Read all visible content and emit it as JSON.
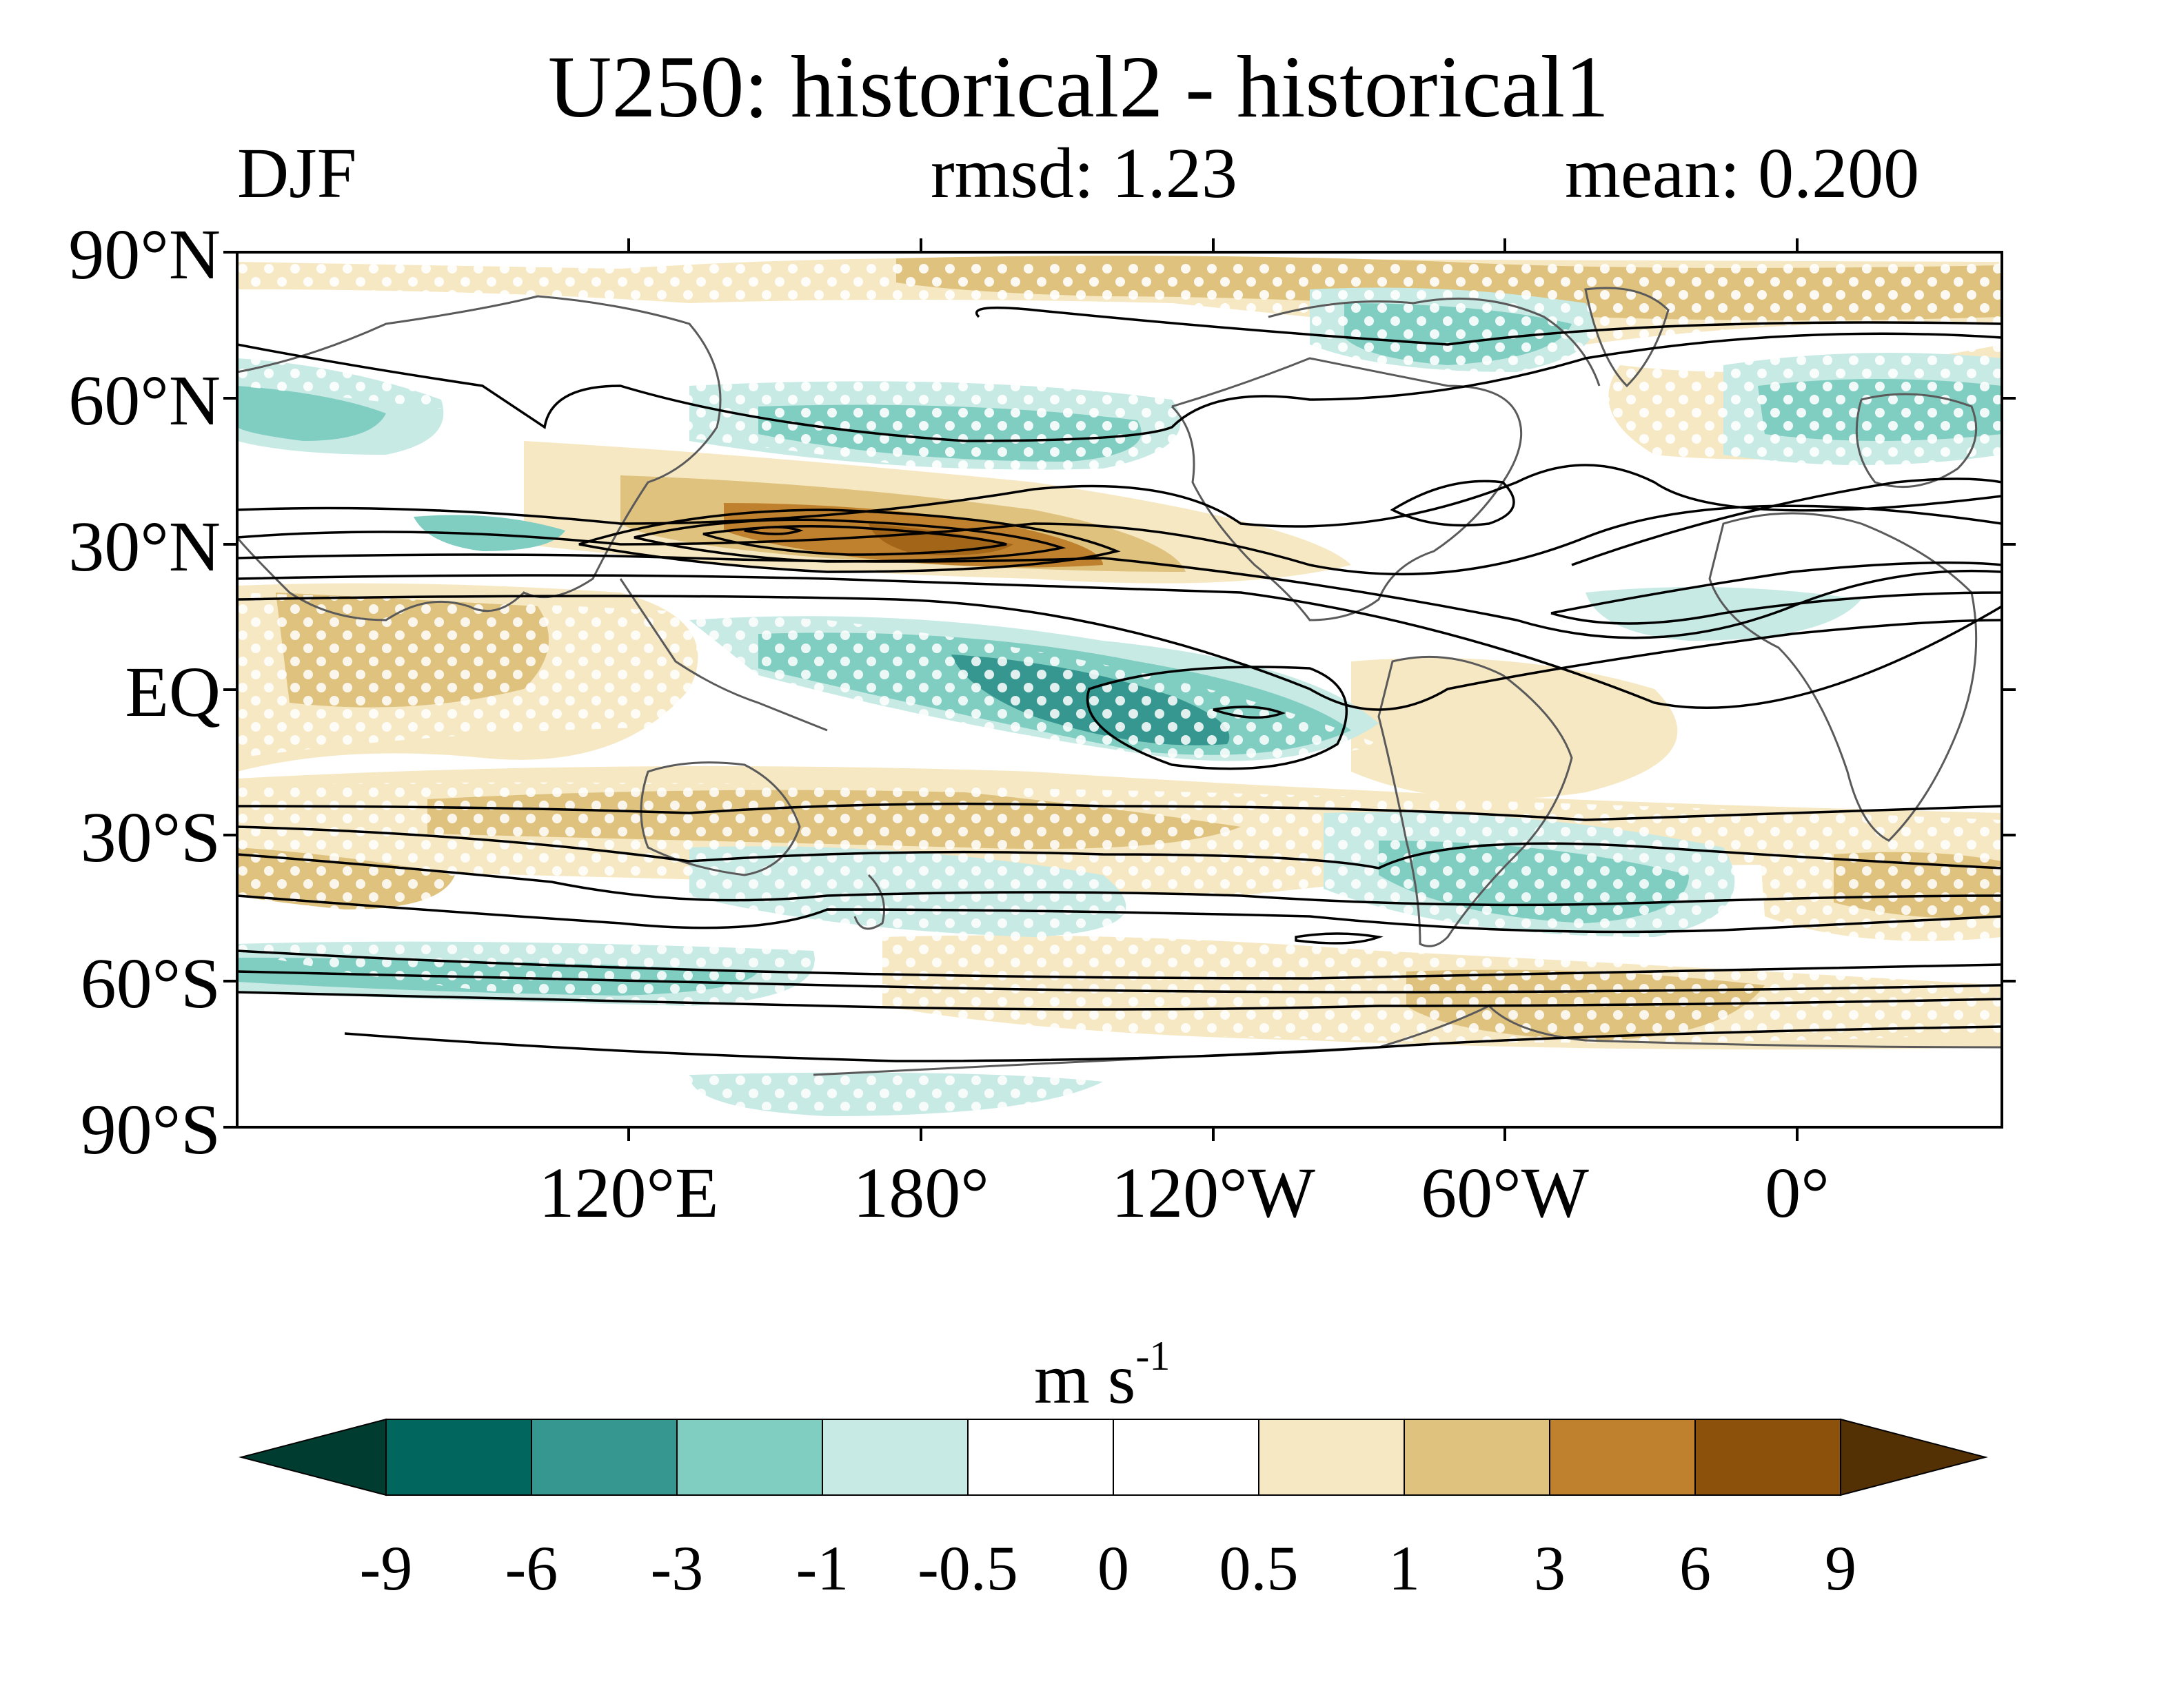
{
  "title": "U250: historical2 - historical1",
  "season": "DJF",
  "rmsd": "rmsd: 1.23",
  "mean": "mean: 0.200",
  "units": {
    "base": "m s",
    "exponent": "-1"
  },
  "lat_labels": [
    "90°N",
    "60°N",
    "30°N",
    "EQ",
    "30°S",
    "60°S",
    "90°S"
  ],
  "lon_labels": [
    "120°E",
    "180°",
    "120°W",
    "60°W",
    "0°"
  ],
  "colorbar": {
    "levels": [
      "-9",
      "-6",
      "-3",
      "-1",
      "-0.5",
      "0",
      "0.5",
      "1",
      "3",
      "6",
      "9"
    ],
    "colors": [
      "#003c30",
      "#01665e",
      "#35978f",
      "#80cdc1",
      "#c7eae5",
      "#ffffff",
      "#ffffff",
      "#f6e8c3",
      "#dfc27d",
      "#bf812d",
      "#8c510a",
      "#543005"
    ]
  },
  "colors": {
    "contour": "#000000",
    "coast": "#5a5a5a",
    "stipple": "#ffffff"
  },
  "chart_data": {
    "type": "heatmap",
    "title": "U250: historical2 - historical1",
    "variable": "U250",
    "season": "DJF",
    "rmsd": 1.23,
    "mean": 0.2,
    "units": "m s-1",
    "xlabel": "",
    "ylabel": "",
    "lon_range": [
      40,
      400
    ],
    "lat_range": [
      -90,
      90
    ],
    "lat_ticks": [
      90,
      60,
      30,
      0,
      -30,
      -60,
      -90
    ],
    "lon_ticks": [
      120,
      180,
      240,
      300,
      360
    ],
    "levels": [
      -9,
      -6,
      -3,
      -1,
      -0.5,
      0,
      0.5,
      1,
      3,
      6,
      9
    ],
    "features": [
      {
        "kind": "positive-anomaly",
        "region": "North Pacific jet exit",
        "lon": 185,
        "lat": 32,
        "max_value": 6
      },
      {
        "kind": "positive-anomaly",
        "region": "Tropical Indian Ocean",
        "lon": 70,
        "lat": 10,
        "max_value": 1
      },
      {
        "kind": "positive-anomaly",
        "region": "Southern mid-latitudes",
        "lon": 160,
        "lat": -30,
        "max_value": 3
      },
      {
        "kind": "positive-anomaly",
        "region": "South Atlantic / Antarctic",
        "lon": 310,
        "lat": -62,
        "max_value": 3
      },
      {
        "kind": "negative-anomaly",
        "region": "Central tropical Pacific",
        "lon": 215,
        "lat": -5,
        "min_value": -6
      },
      {
        "kind": "negative-anomaly",
        "region": "North America / Atlantic",
        "lon": 290,
        "lat": 60,
        "min_value": -3
      },
      {
        "kind": "negative-anomaly",
        "region": "South America / South Atlantic",
        "lon": 320,
        "lat": -40,
        "min_value": -3
      },
      {
        "kind": "negative-anomaly",
        "region": "Europe",
        "lon": 375,
        "lat": 55,
        "min_value": -3
      }
    ],
    "overlays": [
      "climatological U250 contours (black)",
      "significance stippling (white dots)",
      "coastlines"
    ]
  }
}
